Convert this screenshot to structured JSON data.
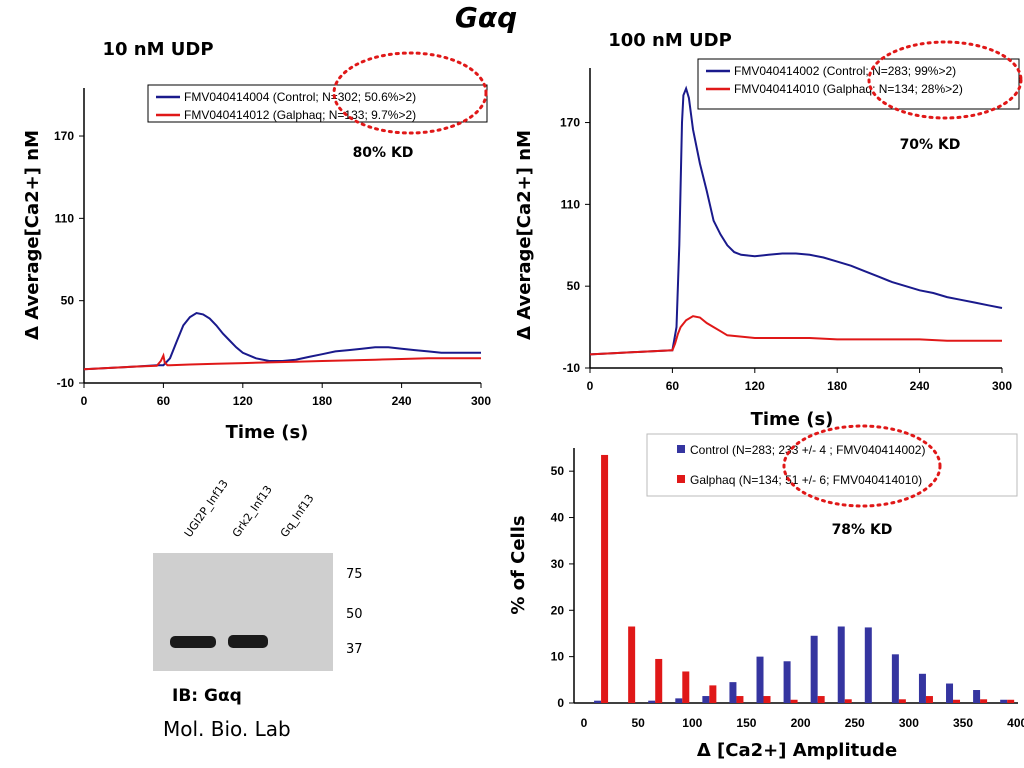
{
  "slide_title": "Gαq",
  "chart_data": [
    {
      "type": "line",
      "title": "10 nM UDP",
      "xlabel": "Time (s)",
      "ylabel": "Δ Average[Ca2+] nM",
      "xlim": [
        0,
        300
      ],
      "ylim": [
        -10,
        205
      ],
      "x_ticks": [
        "0",
        "60",
        "120",
        "180",
        "240",
        "300"
      ],
      "y_ticks": [
        "-10",
        "50",
        "110",
        "170"
      ],
      "legend_position": "top-right",
      "annotation": "80% KD",
      "series": [
        {
          "name": "FMV040414004 (Control; N=302; 50.6%>2)",
          "color": "#1a1a8c",
          "x": [
            0,
            20,
            40,
            55,
            60,
            65,
            70,
            75,
            80,
            85,
            90,
            95,
            100,
            105,
            110,
            115,
            120,
            130,
            140,
            150,
            160,
            170,
            180,
            190,
            200,
            210,
            220,
            230,
            240,
            250,
            260,
            270,
            280,
            290,
            300
          ],
          "y": [
            0,
            1,
            2,
            3,
            3,
            8,
            20,
            32,
            38,
            41,
            40,
            37,
            32,
            26,
            21,
            16,
            12,
            8,
            6,
            6,
            7,
            9,
            11,
            13,
            14,
            15,
            16,
            16,
            15,
            14,
            13,
            12,
            12,
            12,
            12
          ]
        },
        {
          "name": "FMV040414012 (Galphaq; N=133; 9.7%>2)",
          "color": "#e01818",
          "x": [
            0,
            20,
            40,
            55,
            58,
            60,
            61,
            63,
            65,
            80,
            100,
            120,
            140,
            160,
            180,
            200,
            220,
            240,
            260,
            280,
            300
          ],
          "y": [
            0,
            1,
            2,
            2.5,
            6,
            10,
            5,
            3,
            3,
            3.5,
            4,
            4.5,
            5,
            5.5,
            6,
            6.5,
            7,
            7.5,
            8,
            8,
            8
          ]
        }
      ]
    },
    {
      "type": "line",
      "title": "100 nM UDP",
      "xlabel": "Time (s)",
      "ylabel": "Δ Average[Ca2+] nM",
      "xlim": [
        0,
        300
      ],
      "ylim": [
        -10,
        210
      ],
      "x_ticks": [
        "0",
        "60",
        "120",
        "180",
        "240",
        "300"
      ],
      "y_ticks": [
        "-10",
        "50",
        "110",
        "170"
      ],
      "legend_position": "top-right",
      "annotation": "70% KD",
      "series": [
        {
          "name": "FMV040414002 (Control; N=283; 99%>2)",
          "color": "#1a1a8c",
          "x": [
            0,
            20,
            40,
            60,
            63,
            65,
            67,
            68,
            70,
            72,
            75,
            80,
            85,
            90,
            95,
            100,
            105,
            110,
            120,
            130,
            140,
            150,
            160,
            170,
            180,
            190,
            200,
            210,
            220,
            230,
            240,
            250,
            260,
            270,
            280,
            290,
            300
          ],
          "y": [
            0,
            1,
            2,
            3,
            20,
            80,
            170,
            190,
            195,
            188,
            165,
            140,
            120,
            98,
            88,
            80,
            75,
            73,
            72,
            73,
            74,
            74,
            73,
            71,
            68,
            65,
            61,
            57,
            53,
            50,
            47,
            45,
            42,
            40,
            38,
            36,
            34
          ]
        },
        {
          "name": "FMV040414010 (Galphaq; N=134; 28%>2)",
          "color": "#e01818",
          "x": [
            0,
            20,
            40,
            60,
            62,
            64,
            66,
            70,
            75,
            80,
            85,
            90,
            95,
            100,
            110,
            120,
            140,
            160,
            180,
            200,
            220,
            240,
            260,
            280,
            300
          ],
          "y": [
            0,
            1,
            2,
            3,
            8,
            15,
            20,
            25,
            28,
            27,
            23,
            20,
            17,
            14,
            13,
            12,
            12,
            12,
            11,
            11,
            11,
            11,
            10,
            10,
            10
          ]
        }
      ]
    },
    {
      "type": "bar",
      "xlabel": "Δ [Ca2+] Amplitude",
      "ylabel": "% of Cells",
      "categories": [
        25,
        50,
        75,
        100,
        125,
        150,
        175,
        200,
        225,
        250,
        275,
        300,
        325,
        350,
        375,
        400
      ],
      "x_ticks": [
        "0",
        "50",
        "100",
        "150",
        "200",
        "250",
        "300",
        "350",
        "400"
      ],
      "xlim": [
        0,
        410
      ],
      "ylim": [
        0,
        55
      ],
      "y_ticks": [
        "0",
        "10",
        "20",
        "30",
        "40",
        "50"
      ],
      "legend_position": "top-right",
      "annotation": "78% KD",
      "series": [
        {
          "name": "Control (N=283; 233 +/- 4 ; FMV040414002)",
          "color": "#3535a0",
          "values": [
            0.5,
            0,
            0.5,
            1,
            1.5,
            4.5,
            10,
            9,
            14.5,
            16.5,
            16.3,
            10.5,
            6.3,
            4.2,
            2.8,
            0.7
          ]
        },
        {
          "name": "Galphaq (N=134; 51 +/-  6; FMV040414010)",
          "color": "#e01818",
          "values": [
            53.5,
            16.5,
            9.5,
            6.8,
            3.8,
            1.5,
            1.5,
            0.7,
            1.5,
            0.8,
            0,
            0.8,
            1.5,
            0.7,
            0.8,
            0.7
          ]
        }
      ]
    }
  ],
  "blot": {
    "lanes": [
      "UGI2P_Inf13",
      "Grk2_Inf13",
      "Gq_Inf13"
    ],
    "markers": [
      "75",
      "50",
      "37"
    ],
    "ib_label": "IB: Gαq",
    "lab": "Mol. Bio. Lab"
  },
  "colors": {
    "control": "#1a1a8c",
    "galphaq": "#e01818",
    "kd_circle": "#e01818",
    "blot_bg": "#cfcfcf",
    "band": "#1a1a1a"
  }
}
